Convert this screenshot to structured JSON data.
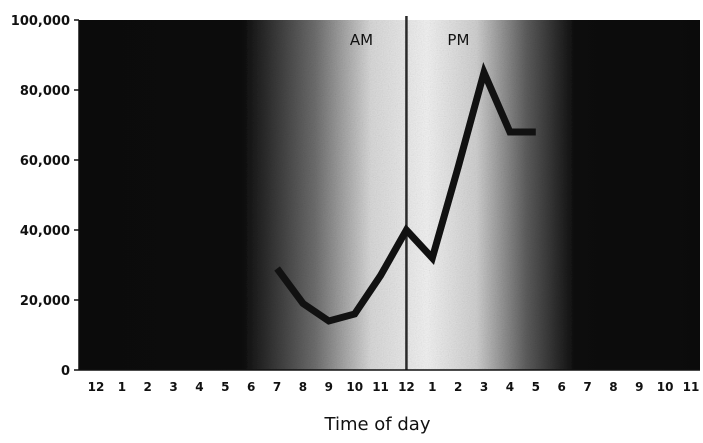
{
  "chart_data": {
    "type": "line",
    "title": "",
    "xlabel": "Time of day",
    "ylabel": "",
    "ylim": [
      0,
      100000
    ],
    "yticks": [
      0,
      20000,
      40000,
      60000,
      80000,
      100000
    ],
    "ytick_labels": [
      "0",
      "20,000",
      "40,000",
      "60,000",
      "80,000",
      "100,000"
    ],
    "x_hours": [
      0,
      1,
      2,
      3,
      4,
      5,
      6,
      7,
      8,
      9,
      10,
      11,
      12,
      13,
      14,
      15,
      16,
      17,
      18,
      19,
      20,
      21,
      22,
      23
    ],
    "x_tick_labels": [
      "12",
      "1",
      "2",
      "3",
      "4",
      "5",
      "6",
      "7",
      "8",
      "9",
      "10",
      "11",
      "12",
      "1",
      "2",
      "3",
      "4",
      "5",
      "6",
      "7",
      "8",
      "9",
      "10",
      "11"
    ],
    "region_labels": [
      "AM",
      "PM"
    ],
    "series": [
      {
        "x": [
          7,
          8,
          9,
          10,
          11,
          12,
          13,
          14,
          15,
          16,
          17
        ],
        "values": [
          29000,
          19000,
          14000,
          16000,
          27000,
          40000,
          32000,
          58000,
          85000,
          68000,
          68000
        ]
      }
    ],
    "grid": false,
    "legend": "none",
    "colors": {
      "night": "#0a0a0a",
      "midday": "#f4f4f4",
      "line": "#111111",
      "axis": "#111111",
      "noon_line": "#2a2a2a"
    }
  }
}
